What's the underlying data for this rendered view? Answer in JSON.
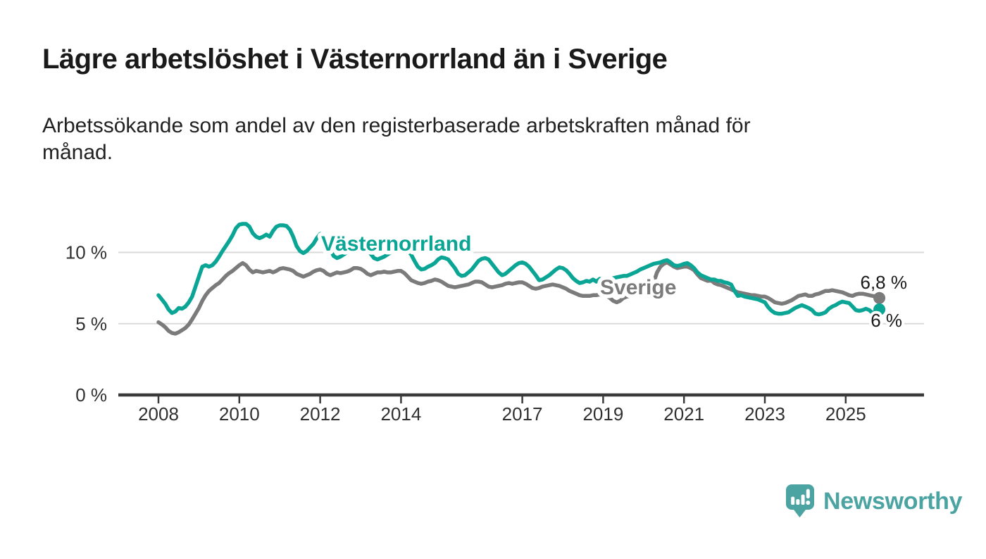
{
  "header": {
    "title": "Lägre arbetslöshet i Västernorrland än i Sverige",
    "subtitle_line1": "Arbetssökande som andel av den registerbaserade arbetskraften månad för",
    "subtitle_line2": "månad."
  },
  "chart_data": {
    "type": "line",
    "unit": "%",
    "frequency": "monthly",
    "start": "2008-01",
    "end": "2025-11",
    "grid": "horizontal-only",
    "x_axis": {
      "tick_years": [
        2008,
        2010,
        2012,
        2014,
        2017,
        2019,
        2021,
        2023,
        2025
      ]
    },
    "y_axis": {
      "range": [
        0,
        13
      ],
      "gridlines": [
        5,
        10
      ],
      "ticks": [
        {
          "value": 0,
          "label": "0 %"
        },
        {
          "value": 5,
          "label": "5 %"
        },
        {
          "value": 10,
          "label": "10 %"
        }
      ]
    },
    "series": [
      {
        "name": "Sverige",
        "color": "#7b7b7b",
        "end_label": "6,8 %",
        "end_value": 6.8,
        "values": [
          5.1,
          4.95,
          4.75,
          4.5,
          4.35,
          4.3,
          4.4,
          4.55,
          4.7,
          4.95,
          5.3,
          5.7,
          6.1,
          6.6,
          7.0,
          7.3,
          7.5,
          7.7,
          7.85,
          8.1,
          8.35,
          8.55,
          8.7,
          8.9,
          9.1,
          9.25,
          9.1,
          8.8,
          8.6,
          8.7,
          8.65,
          8.6,
          8.65,
          8.7,
          8.6,
          8.7,
          8.85,
          8.9,
          8.85,
          8.8,
          8.7,
          8.5,
          8.4,
          8.3,
          8.4,
          8.5,
          8.65,
          8.75,
          8.8,
          8.7,
          8.5,
          8.4,
          8.5,
          8.6,
          8.55,
          8.6,
          8.65,
          8.75,
          8.9,
          8.9,
          8.85,
          8.7,
          8.5,
          8.4,
          8.5,
          8.6,
          8.6,
          8.65,
          8.6,
          8.6,
          8.65,
          8.7,
          8.7,
          8.55,
          8.3,
          8.05,
          7.95,
          7.85,
          7.8,
          7.85,
          7.95,
          8.0,
          8.1,
          8.05,
          7.95,
          7.8,
          7.65,
          7.6,
          7.55,
          7.6,
          7.65,
          7.7,
          7.75,
          7.85,
          7.95,
          7.95,
          7.9,
          7.75,
          7.6,
          7.55,
          7.6,
          7.65,
          7.7,
          7.8,
          7.85,
          7.8,
          7.85,
          7.9,
          7.9,
          7.8,
          7.65,
          7.5,
          7.45,
          7.5,
          7.6,
          7.65,
          7.7,
          7.75,
          7.7,
          7.65,
          7.55,
          7.45,
          7.3,
          7.2,
          7.1,
          7.0,
          6.95,
          6.95,
          6.95,
          7.0,
          7.0,
          7.05,
          7.0,
          6.95,
          6.8,
          6.6,
          6.5,
          6.6,
          6.8,
          6.9,
          6.95,
          7.0,
          7.1,
          7.2,
          7.25,
          7.3,
          7.4,
          7.9,
          8.6,
          9.0,
          9.2,
          9.3,
          9.15,
          9.0,
          8.9,
          8.95,
          9.0,
          9.0,
          8.9,
          8.75,
          8.45,
          8.2,
          8.1,
          8.0,
          8.05,
          7.85,
          7.75,
          7.7,
          7.6,
          7.5,
          7.4,
          7.3,
          7.2,
          7.15,
          7.1,
          7.05,
          7.0,
          7.0,
          6.95,
          6.9,
          6.9,
          6.8,
          6.65,
          6.5,
          6.45,
          6.4,
          6.45,
          6.55,
          6.65,
          6.8,
          6.95,
          7.0,
          7.05,
          6.95,
          6.95,
          7.05,
          7.1,
          7.2,
          7.3,
          7.3,
          7.35,
          7.3,
          7.25,
          7.2,
          7.1,
          7.0,
          6.95,
          7.05,
          7.1,
          7.1,
          7.05,
          7.0,
          6.95,
          6.9,
          6.8
        ]
      },
      {
        "name": "Västernorrland",
        "color": "#0aa594",
        "end_label": "6 %",
        "end_value": 6.0,
        "values": [
          7.0,
          6.7,
          6.4,
          6.0,
          5.75,
          5.85,
          6.1,
          6.05,
          6.2,
          6.5,
          6.9,
          7.6,
          8.3,
          9.0,
          9.1,
          9.0,
          9.1,
          9.35,
          9.7,
          10.1,
          10.45,
          10.8,
          11.2,
          11.7,
          11.95,
          12.0,
          12.0,
          11.8,
          11.35,
          11.1,
          11.0,
          11.1,
          11.25,
          11.1,
          11.5,
          11.8,
          11.9,
          11.9,
          11.85,
          11.6,
          11.1,
          10.45,
          10.1,
          9.95,
          10.1,
          10.35,
          10.6,
          11.0,
          11.3,
          11.1,
          10.7,
          10.2,
          9.75,
          9.6,
          9.7,
          9.85,
          10.0,
          10.2,
          10.4,
          10.6,
          10.75,
          10.6,
          10.3,
          9.9,
          9.6,
          9.5,
          9.6,
          9.7,
          9.85,
          10.0,
          10.15,
          10.3,
          10.35,
          10.25,
          10.1,
          9.85,
          9.4,
          9.0,
          8.8,
          8.85,
          9.0,
          9.1,
          9.25,
          9.5,
          9.65,
          9.6,
          9.5,
          9.2,
          8.9,
          8.5,
          8.35,
          8.4,
          8.6,
          8.8,
          9.1,
          9.4,
          9.55,
          9.6,
          9.5,
          9.2,
          8.9,
          8.6,
          8.4,
          8.5,
          8.7,
          8.9,
          9.1,
          9.25,
          9.3,
          9.2,
          9.0,
          8.7,
          8.4,
          8.05,
          8.1,
          8.25,
          8.4,
          8.6,
          8.8,
          8.95,
          8.9,
          8.75,
          8.5,
          8.2,
          8.0,
          7.85,
          7.9,
          8.0,
          7.95,
          8.1,
          7.95,
          8.15,
          8.1,
          8.2,
          8.1,
          8.2,
          8.25,
          8.3,
          8.35,
          8.35,
          8.45,
          8.55,
          8.65,
          8.8,
          8.9,
          9.0,
          9.1,
          9.2,
          9.25,
          9.3,
          9.4,
          9.45,
          9.3,
          9.1,
          9.05,
          9.1,
          9.2,
          9.25,
          9.1,
          8.9,
          8.6,
          8.4,
          8.3,
          8.2,
          8.1,
          8.1,
          8.0,
          8.0,
          7.9,
          7.85,
          7.75,
          7.3,
          6.95,
          7.0,
          6.9,
          6.85,
          6.8,
          6.75,
          6.7,
          6.6,
          6.5,
          6.15,
          5.9,
          5.75,
          5.7,
          5.7,
          5.75,
          5.8,
          5.95,
          6.1,
          6.2,
          6.3,
          6.2,
          6.1,
          5.95,
          5.7,
          5.65,
          5.7,
          5.8,
          6.05,
          6.2,
          6.3,
          6.45,
          6.55,
          6.5,
          6.45,
          6.2,
          5.95,
          5.9,
          5.95,
          6.05,
          5.95,
          5.75,
          5.85,
          6.0
        ]
      }
    ]
  },
  "footer": {
    "brand": "Newsworthy",
    "brand_color": "#4ba4a1",
    "logo_icon": "speech-bubble-bar-chart"
  }
}
